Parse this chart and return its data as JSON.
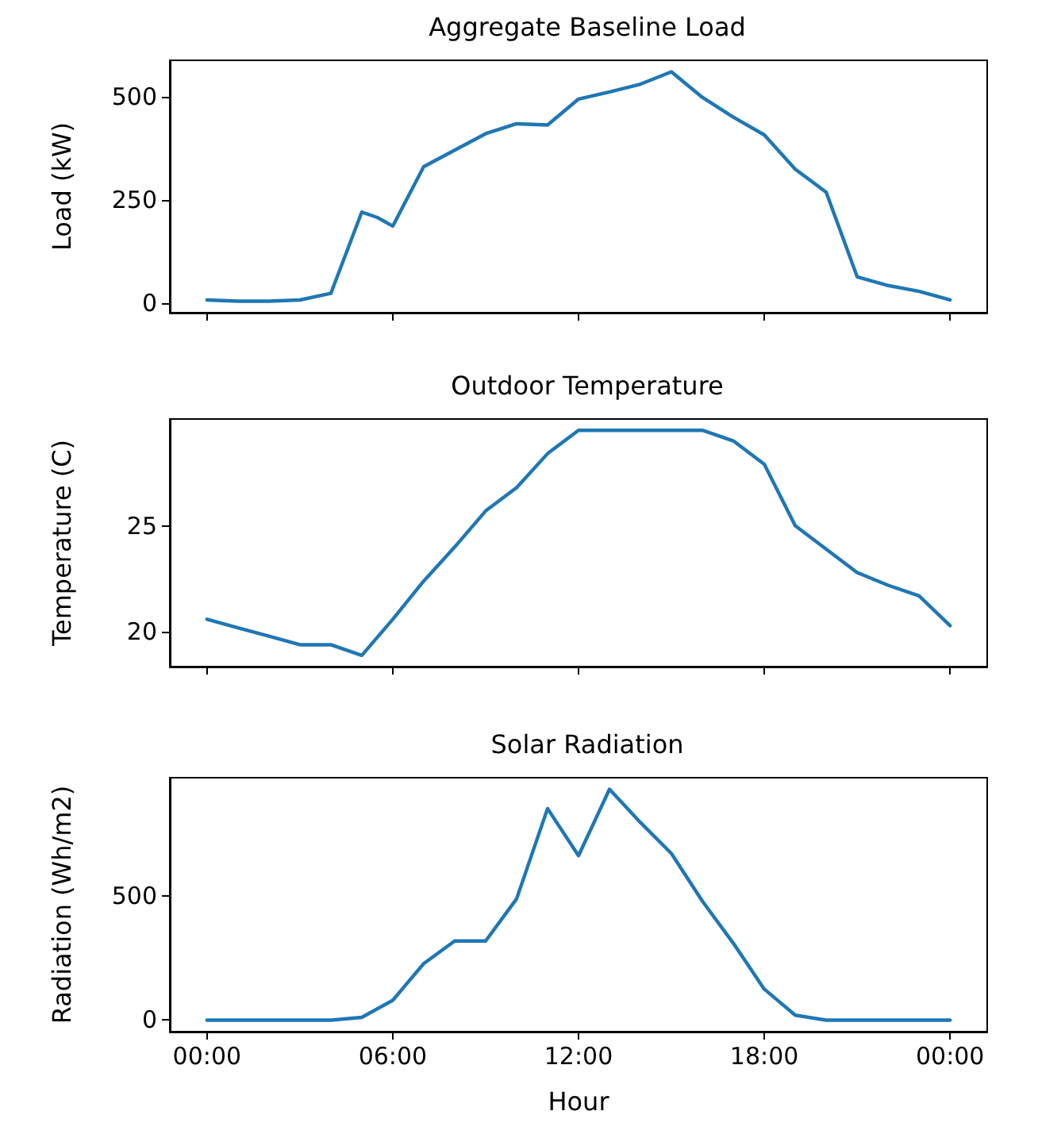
{
  "chart_data": [
    {
      "type": "line",
      "title": "Aggregate Baseline Load",
      "ylabel": "Load (kW)",
      "x": [
        0,
        1,
        2,
        3,
        4,
        5,
        5.5,
        6,
        7,
        8,
        9,
        10,
        11,
        12,
        13,
        14,
        15,
        16,
        17,
        18,
        19,
        20,
        21,
        22,
        23,
        24
      ],
      "series": [
        {
          "color": "#1f77b4",
          "values": [
            8,
            5,
            5,
            8,
            24,
            221,
            208,
            187,
            331,
            371,
            411,
            435,
            432,
            495,
            512,
            531,
            561,
            499,
            451,
            408,
            325,
            269,
            64,
            43,
            29,
            8
          ]
        }
      ],
      "xlim": [
        -1.2,
        25.2
      ],
      "xticks": [
        {
          "value": 0,
          "label": null
        },
        {
          "value": 6,
          "label": null
        },
        {
          "value": 12,
          "label": null
        },
        {
          "value": 18,
          "label": null
        },
        {
          "value": 24,
          "label": null
        }
      ],
      "ylim": [
        -22.8,
        588.8
      ],
      "yticks": [
        0,
        250,
        500
      ],
      "tick_labels": "y",
      "grid": false
    },
    {
      "type": "line",
      "title": "Outdoor Temperature",
      "ylabel": "Temperature (C)",
      "x": [
        0,
        1,
        2,
        3,
        4,
        5,
        6,
        7,
        8,
        9,
        10,
        11,
        12,
        13,
        14,
        15,
        16,
        17,
        18,
        19,
        20,
        21,
        22,
        23,
        24
      ],
      "series": [
        {
          "color": "#1f77b4",
          "values": [
            20.6,
            20.2,
            19.8,
            19.4,
            19.4,
            18.9,
            20.6,
            22.4,
            24.0,
            25.7,
            26.8,
            28.4,
            29.5,
            29.5,
            29.5,
            29.5,
            29.5,
            29.0,
            27.9,
            25.0,
            23.9,
            22.8,
            22.2,
            21.7,
            20.3
          ]
        }
      ],
      "xlim": [
        -1.2,
        25.2
      ],
      "xticks": [
        {
          "value": 0,
          "label": null
        },
        {
          "value": 6,
          "label": null
        },
        {
          "value": 12,
          "label": null
        },
        {
          "value": 18,
          "label": null
        },
        {
          "value": 24,
          "label": null
        }
      ],
      "ylim": [
        18.37,
        30.03
      ],
      "yticks": [
        20,
        25
      ],
      "tick_labels": "y",
      "grid": false
    },
    {
      "type": "line",
      "title": "Solar Radiation",
      "ylabel": "Radiation (Wh/m2)",
      "xlabel": "Hour",
      "x": [
        0,
        1,
        2,
        3,
        4,
        5,
        6,
        7,
        8,
        9,
        10,
        11,
        12,
        13,
        14,
        15,
        16,
        17,
        18,
        19,
        20,
        21,
        22,
        23,
        24
      ],
      "series": [
        {
          "color": "#1f77b4",
          "values": [
            0,
            0,
            0,
            0,
            0,
            11,
            80,
            228,
            319,
            319,
            489,
            853,
            663,
            931,
            797,
            672,
            480,
            310,
            125,
            20,
            0,
            0,
            0,
            0,
            0
          ]
        }
      ],
      "xlim": [
        -1.2,
        25.2
      ],
      "xticks": [
        {
          "value": 0,
          "label": "00:00"
        },
        {
          "value": 6,
          "label": "06:00"
        },
        {
          "value": 12,
          "label": "12:00"
        },
        {
          "value": 18,
          "label": "18:00"
        },
        {
          "value": 24,
          "label": "00:00"
        }
      ],
      "ylim": [
        -46.5,
        977.5
      ],
      "yticks": [
        0,
        500
      ],
      "grid": false
    }
  ]
}
